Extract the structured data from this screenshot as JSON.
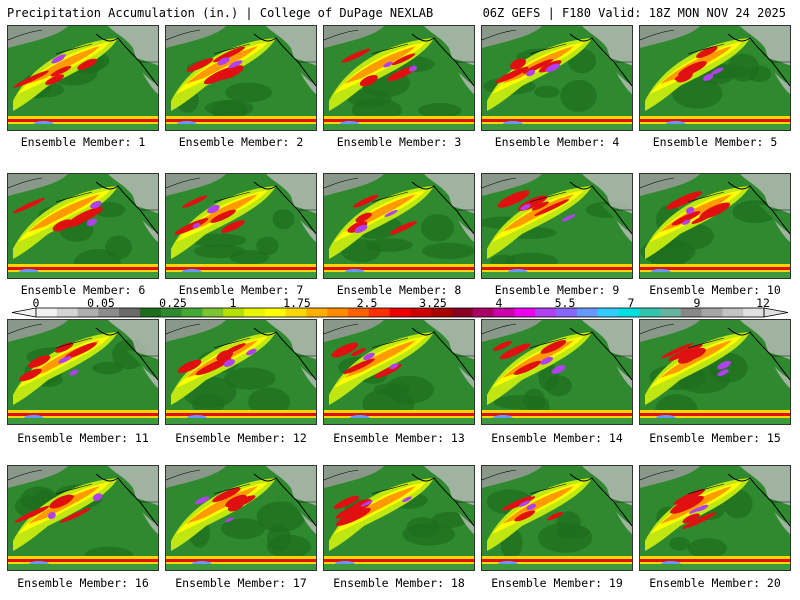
{
  "header": {
    "left": "Precipitation Accumulation (in.) | College of DuPage NEXLAB",
    "right": "06Z GEFS | F180 Valid: 18Z MON NOV 24 2025"
  },
  "members": [
    "Ensemble Member: 1",
    "Ensemble Member: 2",
    "Ensemble Member: 3",
    "Ensemble Member: 4",
    "Ensemble Member: 5",
    "Ensemble Member: 6",
    "Ensemble Member: 7",
    "Ensemble Member: 8",
    "Ensemble Member: 9",
    "Ensemble Member: 10",
    "Ensemble Member: 11",
    "Ensemble Member: 12",
    "Ensemble Member: 13",
    "Ensemble Member: 14",
    "Ensemble Member: 15",
    "Ensemble Member: 16",
    "Ensemble Member: 17",
    "Ensemble Member: 18",
    "Ensemble Member: 19",
    "Ensemble Member: 20"
  ],
  "scale": {
    "ticks": [
      "0",
      "0.05",
      "0.25",
      "1",
      "1.75",
      "2.5",
      "3.25",
      "4",
      "5.5",
      "7",
      "9",
      "12"
    ],
    "colors": [
      "#f2f2f2",
      "#d4d4d4",
      "#b0b0b0",
      "#8c8c8c",
      "#6a6a6a",
      "#1d6d1d",
      "#2f8a2f",
      "#45a835",
      "#7cc431",
      "#b7e000",
      "#e8f500",
      "#ffff00",
      "#ffd700",
      "#ffb000",
      "#ff8c00",
      "#ff6000",
      "#ff3000",
      "#ee0000",
      "#cc0000",
      "#a80000",
      "#880022",
      "#aa0066",
      "#cc00aa",
      "#ee00ee",
      "#b040f0",
      "#8866ff",
      "#6699ff",
      "#33ccff",
      "#00e0e0",
      "#33c4b0",
      "#66b3a0",
      "#888888",
      "#a6a6a6",
      "#c4c4c4",
      "#e0e0e0"
    ]
  }
}
